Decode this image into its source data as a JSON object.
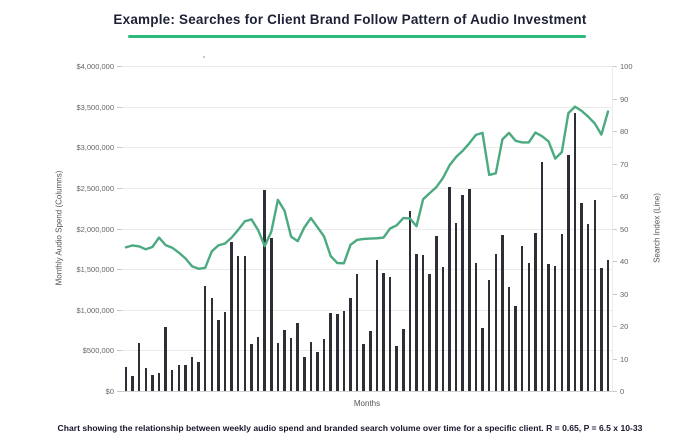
{
  "title": {
    "text": "Example: Searches for Client Brand Follow Pattern of Audio Investment"
  },
  "accent_color": "#2bb97c",
  "caption": {
    "text": "Chart showing the relationship between weekly audio spend and branded search volume over time for a specific client. R = 0.65, P = 6.5 x 10-33"
  },
  "chart_data": {
    "type": "bar",
    "title": "Example: Searches for Client Brand Follow Pattern of Audio Investment",
    "xlabel": "Months",
    "ylabel_left": "Monthly Audio Spend (Columns)",
    "ylabel_right": "Search Index (Line)",
    "y_left_ticks": [
      "$4,000,000",
      "$3,500,000",
      "$3,000,000",
      "$2,500,000",
      "$2,000,000",
      "$1,500,000",
      "$1,000,000",
      "$500,000",
      "$0"
    ],
    "y_right_ticks": [
      "100",
      "90",
      "80",
      "70",
      "60",
      "50",
      "40",
      "30",
      "20",
      "10",
      "0"
    ],
    "y_left_range": [
      0,
      4000000
    ],
    "y_right_range": [
      0,
      100
    ],
    "grid": "horizontal",
    "legend": "none",
    "bar_color": "#2e2e36",
    "line_color": "#4caa80",
    "series": [
      {
        "name": "Monthly Audio Spend",
        "type": "bar",
        "axis": "left",
        "values": [
          300000,
          190000,
          590000,
          280000,
          200000,
          225000,
          790000,
          260000,
          320000,
          320000,
          420000,
          360000,
          1290000,
          1140000,
          880000,
          975000,
          1830000,
          1660000,
          1660000,
          585000,
          667000,
          2480000,
          1880000,
          593000,
          750000,
          647000,
          840000,
          420000,
          605000,
          481000,
          635000,
          963000,
          947000,
          988000,
          1140000,
          1441000,
          573000,
          737000,
          1612000,
          1451000,
          1409000,
          560000,
          762000,
          2222000,
          1688000,
          1675000,
          1438000,
          1914000,
          1531000,
          2512000,
          2074000,
          2419000,
          2490000,
          1580000,
          778000,
          1370000,
          1690000,
          1920000,
          1280000,
          1050000,
          1780000,
          1580000,
          1940000,
          2820000,
          1560000,
          1540000,
          1930000,
          2900000,
          3420000,
          2320000,
          2060000,
          2350000,
          1520000,
          1610000
        ]
      },
      {
        "name": "Search Index",
        "type": "line",
        "axis": "right",
        "values": [
          44.2,
          44.8,
          44.5,
          43.6,
          44.3,
          47.2,
          44.9,
          44.1,
          42.6,
          40.8,
          38.4,
          37.6,
          37.9,
          43,
          44.8,
          45.4,
          47.2,
          49.6,
          52.2,
          52.8,
          49.5,
          44.6,
          49,
          58.8,
          55.5,
          47.5,
          46.1,
          50.3,
          53.2,
          50.4,
          47.5,
          41.5,
          39.4,
          39.3,
          45,
          46.5,
          46.8,
          46.9,
          47,
          47.2,
          50,
          51,
          53.2,
          53.1,
          50.7,
          59,
          60.9,
          62.7,
          65.5,
          69.4,
          72,
          73.9,
          76.2,
          78.8,
          79.4,
          66.5,
          67,
          77.4,
          79.4,
          77,
          76.5,
          76.5,
          79.5,
          78.4,
          76.8,
          71.5,
          73.5,
          85.5,
          87.5,
          86.2,
          84.4,
          82.3,
          78.9,
          86
        ]
      }
    ]
  }
}
